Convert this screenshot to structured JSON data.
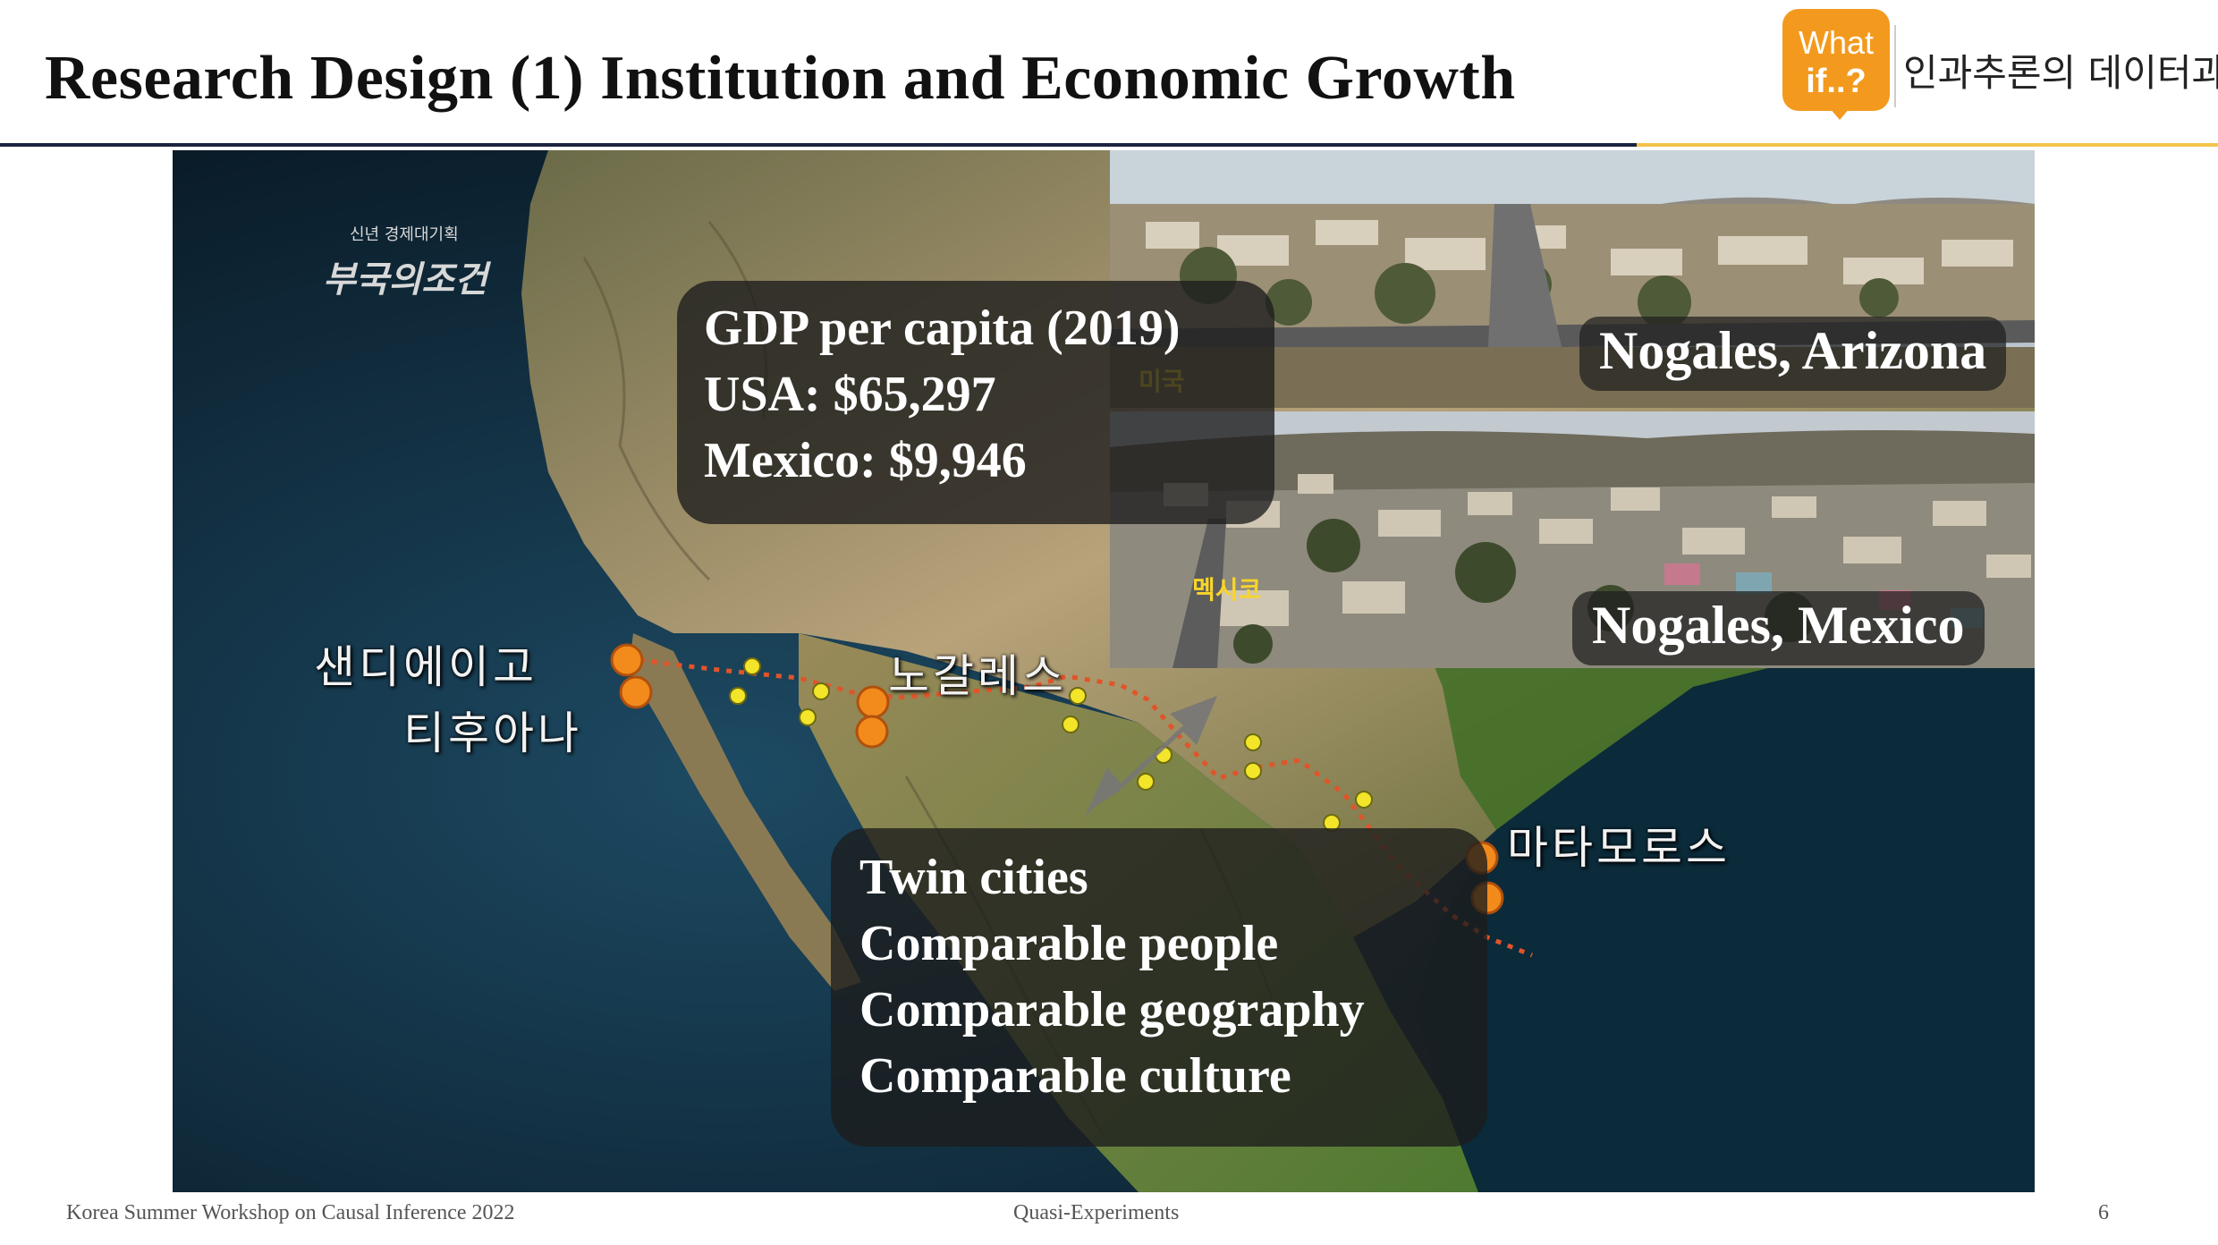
{
  "slide": {
    "title": "Research Design (1) Institution and Economic Growth",
    "logo_line1": "What",
    "logo_line2": "if..?",
    "logo_text": "인과추론의 데이터과학"
  },
  "map": {
    "brand_small": "신년 경제대기획",
    "brand_big": "부국의조건",
    "gdp_box": [
      "GDP per capita (2019)",
      "USA: $65,297",
      "Mexico: $9,946"
    ],
    "twin_box": [
      "Twin cities",
      "Comparable people",
      "Comparable geography",
      "Comparable culture"
    ],
    "city_labels": {
      "san_diego": "샌디에이고",
      "tijuana": "티후아나",
      "nogales": "노갈레스",
      "matamoros": "마타모로스"
    }
  },
  "photos": {
    "top_caption": "Nogales, Arizona",
    "top_label": "미국",
    "bottom_caption": "Nogales, Mexico",
    "bottom_label": "멕시코"
  },
  "footer": {
    "left": "Korea Summer Workshop on Causal Inference 2022",
    "center": "Quasi-Experiments",
    "page": "6"
  },
  "colors": {
    "title_rule": "#1b2440",
    "accent_gold": "#f3c34a",
    "logo_orange": "#f39a1e",
    "city_marker": "#f28a1c",
    "town_marker": "#f2e52a",
    "border_line": "#e0542a"
  }
}
